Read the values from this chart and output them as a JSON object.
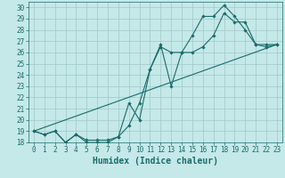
{
  "xlabel": "Humidex (Indice chaleur)",
  "ylabel": "",
  "xlim": [
    -0.5,
    23.5
  ],
  "ylim": [
    18,
    30.5
  ],
  "yticks": [
    18,
    19,
    20,
    21,
    22,
    23,
    24,
    25,
    26,
    27,
    28,
    29,
    30
  ],
  "xticks": [
    0,
    1,
    2,
    3,
    4,
    5,
    6,
    7,
    8,
    9,
    10,
    11,
    12,
    13,
    14,
    15,
    16,
    17,
    18,
    19,
    20,
    21,
    22,
    23
  ],
  "background_color": "#c5e8e8",
  "line_color": "#1a6b6b",
  "grid_color": "#a0c8c8",
  "line1_x": [
    0,
    1,
    2,
    3,
    4,
    5,
    6,
    7,
    8,
    9,
    10,
    11,
    12,
    13,
    14,
    15,
    16,
    17,
    18,
    19,
    20,
    21,
    22,
    23
  ],
  "line1_y": [
    19.0,
    18.7,
    19.0,
    18.0,
    18.7,
    18.0,
    18.0,
    18.0,
    18.5,
    21.5,
    20.0,
    24.5,
    26.7,
    23.0,
    26.0,
    27.5,
    29.2,
    29.2,
    30.2,
    29.2,
    28.0,
    26.7,
    26.5,
    26.7
  ],
  "line2_x": [
    0,
    1,
    2,
    3,
    4,
    5,
    6,
    7,
    8,
    9,
    10,
    11,
    12,
    13,
    14,
    15,
    16,
    17,
    18,
    19,
    20,
    21,
    22,
    23
  ],
  "line2_y": [
    19.0,
    18.7,
    19.0,
    18.0,
    18.7,
    18.2,
    18.2,
    18.2,
    18.5,
    19.5,
    21.5,
    24.5,
    26.5,
    26.0,
    26.0,
    26.0,
    26.5,
    27.5,
    29.5,
    28.7,
    28.7,
    26.7,
    26.7,
    26.7
  ],
  "line3_x": [
    0,
    23
  ],
  "line3_y": [
    19.0,
    26.7
  ],
  "font_color": "#1a6b6b",
  "tick_fontsize": 5.5,
  "label_fontsize": 7.0,
  "linewidth": 0.8,
  "marker": "D",
  "markersize": 1.8
}
